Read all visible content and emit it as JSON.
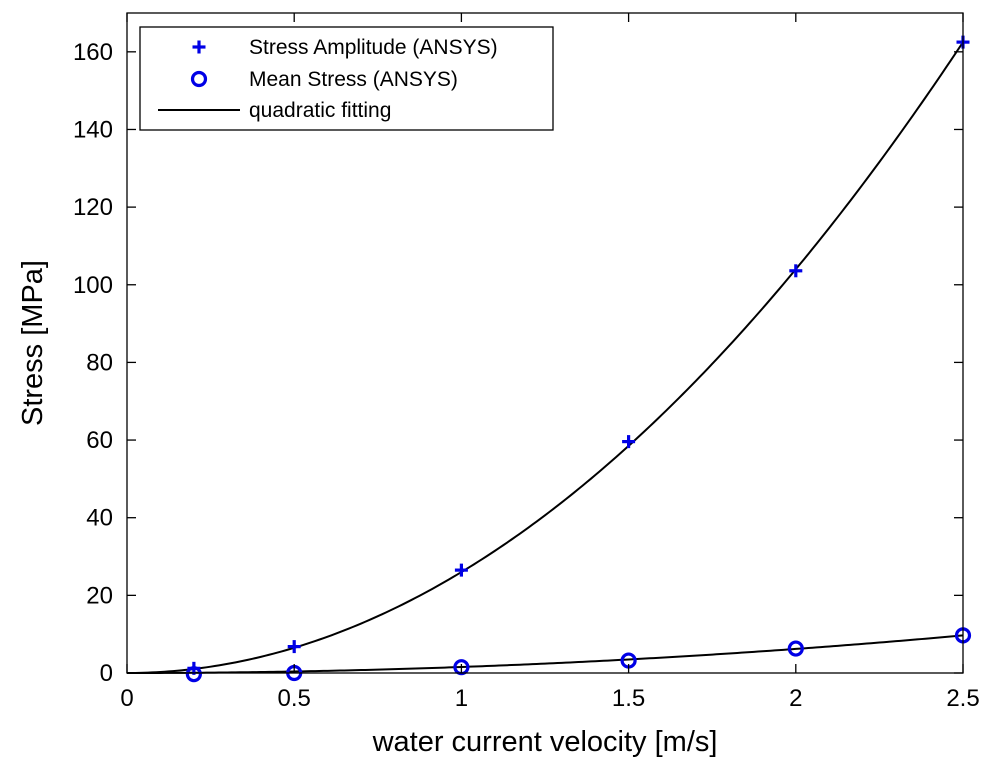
{
  "chart_data": {
    "type": "scatter",
    "xlabel": "water current velocity [m/s]",
    "ylabel": "Stress [MPa]",
    "xlim": [
      0,
      2.5
    ],
    "ylim": [
      0,
      170
    ],
    "xticks": [
      0,
      0.5,
      1,
      1.5,
      2,
      2.5
    ],
    "xtick_labels": [
      "0",
      "0.5",
      "1",
      "1.5",
      "2",
      "2.5"
    ],
    "yticks": [
      0,
      20,
      40,
      60,
      80,
      100,
      120,
      140,
      160
    ],
    "ytick_labels": [
      "0",
      "20",
      "40",
      "60",
      "80",
      "100",
      "120",
      "140",
      "160"
    ],
    "grid": false,
    "legend_position": "top-left",
    "series": [
      {
        "name": "Stress Amplitude (ANSYS)",
        "marker": "plus",
        "color": "#0000e6",
        "x": [
          0.2,
          0.5,
          1,
          1.5,
          2,
          2.5
        ],
        "y": [
          1.2,
          6.8,
          26.5,
          59.6,
          103.6,
          162.5
        ]
      },
      {
        "name": "Mean Stress (ANSYS)",
        "marker": "circle",
        "color": "#0000e6",
        "x": [
          0.2,
          0.5,
          1,
          1.5,
          2,
          2.5
        ],
        "y": [
          -0.3,
          0.0,
          1.5,
          3.2,
          6.3,
          9.7
        ]
      }
    ],
    "fits": [
      {
        "name": "quadratic fitting",
        "color": "#000000",
        "coef": [
          26.0,
          0.0,
          0.0
        ],
        "x_range": [
          0,
          2.5
        ]
      },
      {
        "name": "",
        "color": "#000000",
        "coef": [
          1.55,
          0.0,
          0.0
        ],
        "x_range": [
          0,
          2.5
        ]
      }
    ],
    "legend": [
      {
        "label": "Stress Amplitude (ANSYS)",
        "symbol": "plus"
      },
      {
        "label": "Mean Stress (ANSYS)",
        "symbol": "circle"
      },
      {
        "label": "quadratic fitting",
        "symbol": "line"
      }
    ]
  }
}
